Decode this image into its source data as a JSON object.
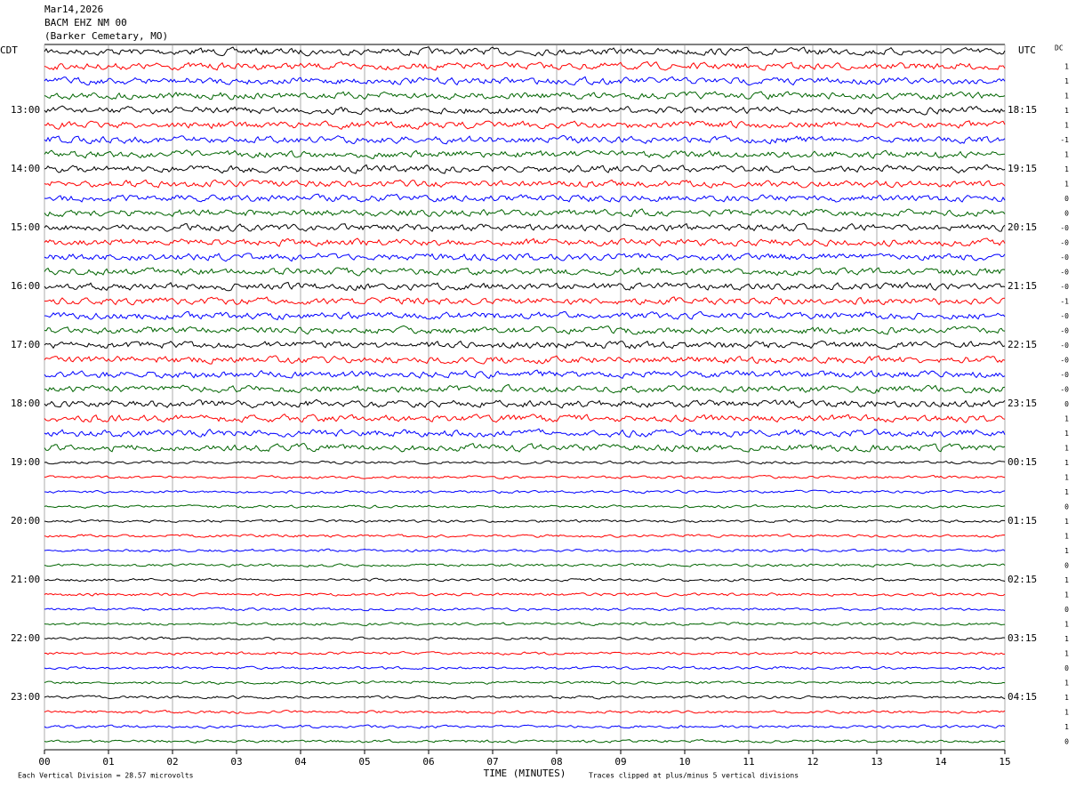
{
  "chart_data": {
    "type": "helicorder",
    "title": "Mar14,2026",
    "station": "BACM EHZ NM 00",
    "location": "(Barker Cemetary, MO)",
    "left_timezone": "CDT",
    "right_timezone": "UTC",
    "dc_header": "DC",
    "x_label": "TIME (MINUTES)",
    "scale_note": "Each Vertical Division =   28.57 microvolts",
    "clip_note": "Traces clipped at plus/minus 5 vertical divisions",
    "xlim": [
      0,
      15
    ],
    "xticks": [
      {
        "value": 0,
        "label": "00"
      },
      {
        "value": 1,
        "label": "01"
      },
      {
        "value": 2,
        "label": "02"
      },
      {
        "value": 3,
        "label": "03"
      },
      {
        "value": 4,
        "label": "04"
      },
      {
        "value": 5,
        "label": "05"
      },
      {
        "value": 6,
        "label": "06"
      },
      {
        "value": 7,
        "label": "07"
      },
      {
        "value": 8,
        "label": "08"
      },
      {
        "value": 9,
        "label": "09"
      },
      {
        "value": 10,
        "label": "10"
      },
      {
        "value": 11,
        "label": "11"
      },
      {
        "value": 12,
        "label": "12"
      },
      {
        "value": 13,
        "label": "13"
      },
      {
        "value": 14,
        "label": "14"
      },
      {
        "value": 15,
        "label": "15"
      }
    ],
    "trace_colors": [
      "#000000",
      "#ff0000",
      "#0000ff",
      "#006400"
    ],
    "left_labels": [
      "13:00",
      "14:00",
      "15:00",
      "16:00",
      "17:00",
      "18:00",
      "19:00",
      "20:00",
      "21:00",
      "22:00",
      "23:00"
    ],
    "right_labels": [
      "18:15",
      "19:15",
      "20:15",
      "21:15",
      "22:15",
      "23:15",
      "00:15",
      "01:15",
      "02:15",
      "03:15",
      "04:15"
    ],
    "dc_values": [
      "1",
      "1",
      "1",
      "1",
      "1",
      "-1",
      "1",
      "1",
      "1",
      "0",
      "0",
      "-0",
      "-0",
      "-0",
      "-0",
      "-0",
      "-1",
      "-0",
      "-0",
      "-0",
      "-0",
      "-0",
      "-0",
      "0",
      "1",
      "1",
      "1",
      "1",
      "1",
      "1",
      "0",
      "1",
      "1",
      "1",
      "0",
      "1",
      "1",
      "0",
      "1",
      "1",
      "1",
      "0",
      "1",
      "1",
      "1",
      "1",
      "0"
    ]
  }
}
